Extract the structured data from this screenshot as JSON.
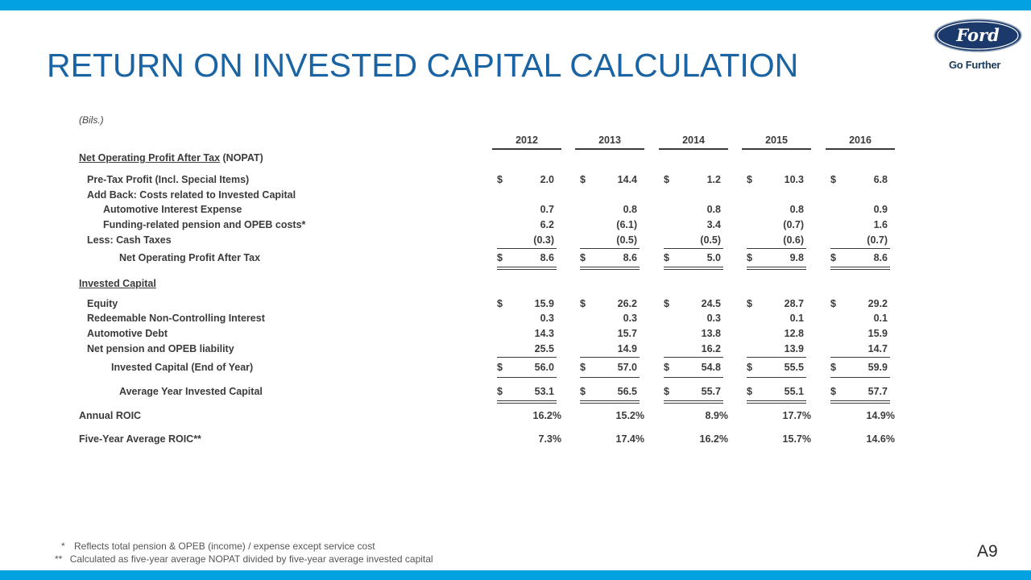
{
  "slide": {
    "title": "RETURN ON INVESTED CAPITAL CALCULATION",
    "units": "(Bils.)",
    "brand": {
      "logo_text": "Ford",
      "tagline": "Go Further",
      "logo_color": "#1b3a6b"
    },
    "page_number": "A9",
    "accent_color": "#00a3e0",
    "title_color": "#1b64a4"
  },
  "table": {
    "years": [
      "2012",
      "2013",
      "2014",
      "2015",
      "2016"
    ],
    "nopat_header": "Net Operating Profit After Tax",
    "nopat_header_suffix": "(NOPAT)",
    "pretax": {
      "label": "Pre-Tax Profit (Incl. Special Items)",
      "values": [
        "2.0",
        "14.4",
        "1.2",
        "10.3",
        "6.8"
      ]
    },
    "addback_label": "Add Back: Costs related to Invested Capital",
    "auto_interest": {
      "label": "Automotive Interest Expense",
      "values": [
        "0.7",
        "0.8",
        "0.8",
        "0.8",
        "0.9"
      ]
    },
    "pension": {
      "label": "Funding-related pension and OPEB costs*",
      "values": [
        "6.2",
        "(6.1)",
        "3.4",
        "(0.7)",
        "1.6"
      ]
    },
    "cash_taxes": {
      "label": "Less: Cash Taxes",
      "values": [
        "(0.3)",
        "(0.5)",
        "(0.5)",
        "(0.6)",
        "(0.7)"
      ]
    },
    "nopat_total": {
      "label": "Net Operating Profit After Tax",
      "values": [
        "8.6",
        "8.6",
        "5.0",
        "9.8",
        "8.6"
      ]
    },
    "ic_header": "Invested Capital",
    "equity": {
      "label": "Equity",
      "values": [
        "15.9",
        "26.2",
        "24.5",
        "28.7",
        "29.2"
      ]
    },
    "redeemable": {
      "label": "Redeemable Non-Controlling Interest",
      "values": [
        "0.3",
        "0.3",
        "0.3",
        "0.1",
        "0.1"
      ]
    },
    "auto_debt": {
      "label": "Automotive Debt",
      "values": [
        "14.3",
        "15.7",
        "13.8",
        "12.8",
        "15.9"
      ]
    },
    "pension_liab": {
      "label": "Net pension and OPEB liability",
      "values": [
        "25.5",
        "14.9",
        "16.2",
        "13.9",
        "14.7"
      ]
    },
    "ic_total": {
      "label": "Invested Capital (End of Year)",
      "values": [
        "56.0",
        "57.0",
        "54.8",
        "55.5",
        "59.9"
      ]
    },
    "avg_ic": {
      "label": "Average Year Invested Capital",
      "values": [
        "53.1",
        "56.5",
        "55.7",
        "55.1",
        "57.7"
      ]
    },
    "annual_roic": {
      "label": "Annual ROIC",
      "values": [
        "16.2%",
        "15.2%",
        "8.9%",
        "17.7%",
        "14.9%"
      ]
    },
    "five_year_roic": {
      "label": "Five-Year Average ROIC**",
      "values": [
        "7.3%",
        "17.4%",
        "16.2%",
        "15.7%",
        "14.6%"
      ]
    },
    "currency_symbol": "$"
  },
  "footnotes": {
    "note1_mark": "*",
    "note1": "Reflects total pension & OPEB (income) / expense except service cost",
    "note2_mark": "**",
    "note2": "Calculated as five-year average NOPAT divided by five-year average invested capital"
  }
}
